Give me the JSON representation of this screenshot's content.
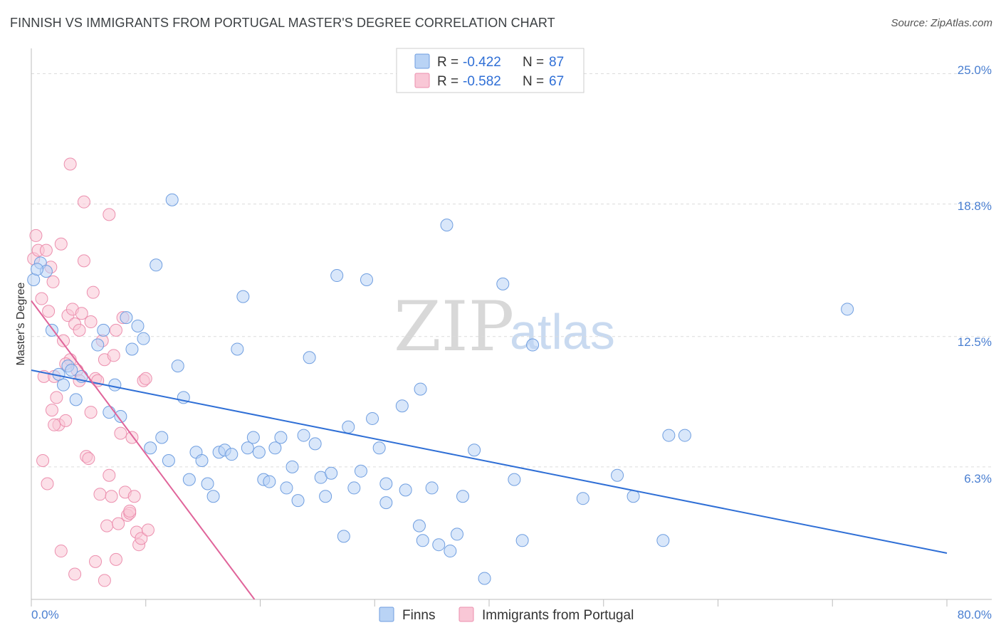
{
  "title": "FINNISH VS IMMIGRANTS FROM PORTUGAL MASTER'S DEGREE CORRELATION CHART",
  "source": "Source: ZipAtlas.com",
  "watermark": {
    "zip": "ZIP",
    "atlas": "atlas"
  },
  "legend": {
    "r_label": "R =",
    "n_label": "N =",
    "series": [
      {
        "name": "Finns",
        "r": "-0.422",
        "n": "87",
        "fill": "#b9d3f5",
        "stroke": "#6f9ee0"
      },
      {
        "name": "Immigrants from Portugal",
        "r": "-0.582",
        "n": "67",
        "fill": "#f9c7d6",
        "stroke": "#ec8fae"
      }
    ]
  },
  "colors": {
    "finns_line": "#2f6fd6",
    "portugal_line": "#e0649a",
    "grid": "#dcdcdc",
    "tick_text": "#4a7fd1"
  },
  "chart_data": {
    "type": "scatter",
    "title": "FINNISH VS IMMIGRANTS FROM PORTUGAL MASTER'S DEGREE CORRELATION CHART",
    "xlabel": "",
    "ylabel": "Master's Degree",
    "xlim": [
      0,
      80
    ],
    "ylim": [
      0,
      26.2
    ],
    "x_tick_labels": [
      "0.0%",
      "80.0%"
    ],
    "y_ticks": [
      6.3,
      12.5,
      18.8,
      25.0
    ],
    "y_tick_labels": [
      "6.3%",
      "12.5%",
      "18.8%",
      "25.0%"
    ],
    "series": [
      {
        "name": "Finns",
        "trend": {
          "x": [
            0,
            80
          ],
          "y": [
            10.9,
            2.2
          ]
        },
        "points": [
          [
            0.2,
            15.2
          ],
          [
            0.8,
            16.0
          ],
          [
            1.3,
            15.6
          ],
          [
            1.8,
            12.8
          ],
          [
            2.4,
            10.7
          ],
          [
            2.8,
            10.2
          ],
          [
            3.2,
            11.1
          ],
          [
            3.5,
            10.9
          ],
          [
            3.9,
            9.5
          ],
          [
            4.4,
            10.6
          ],
          [
            5.8,
            12.1
          ],
          [
            6.3,
            12.8
          ],
          [
            6.8,
            8.9
          ],
          [
            7.3,
            10.2
          ],
          [
            7.8,
            8.7
          ],
          [
            8.3,
            13.4
          ],
          [
            8.8,
            11.9
          ],
          [
            9.3,
            13.0
          ],
          [
            9.8,
            12.4
          ],
          [
            10.4,
            7.2
          ],
          [
            10.9,
            15.9
          ],
          [
            11.4,
            7.7
          ],
          [
            12.0,
            6.6
          ],
          [
            12.3,
            19.0
          ],
          [
            12.8,
            11.1
          ],
          [
            13.3,
            9.6
          ],
          [
            13.8,
            5.7
          ],
          [
            14.4,
            7.0
          ],
          [
            14.9,
            6.6
          ],
          [
            15.4,
            5.5
          ],
          [
            15.9,
            4.9
          ],
          [
            16.4,
            7.0
          ],
          [
            16.9,
            7.1
          ],
          [
            17.5,
            6.9
          ],
          [
            18.0,
            11.9
          ],
          [
            18.5,
            14.4
          ],
          [
            18.9,
            7.2
          ],
          [
            19.4,
            7.7
          ],
          [
            19.9,
            7.0
          ],
          [
            20.3,
            5.7
          ],
          [
            20.8,
            5.6
          ],
          [
            21.3,
            7.2
          ],
          [
            21.8,
            7.7
          ],
          [
            22.3,
            5.3
          ],
          [
            22.8,
            6.3
          ],
          [
            23.3,
            4.7
          ],
          [
            23.8,
            7.8
          ],
          [
            24.3,
            11.5
          ],
          [
            24.8,
            7.4
          ],
          [
            25.3,
            5.8
          ],
          [
            25.7,
            4.9
          ],
          [
            26.2,
            6.0
          ],
          [
            26.7,
            15.4
          ],
          [
            27.3,
            3.0
          ],
          [
            27.7,
            8.2
          ],
          [
            28.2,
            5.3
          ],
          [
            28.8,
            6.1
          ],
          [
            29.3,
            15.2
          ],
          [
            29.8,
            8.6
          ],
          [
            30.4,
            7.2
          ],
          [
            31.0,
            5.5
          ],
          [
            31.0,
            4.6
          ],
          [
            32.4,
            9.2
          ],
          [
            32.7,
            5.2
          ],
          [
            34.0,
            10.0
          ],
          [
            35.0,
            5.3
          ],
          [
            33.9,
            3.5
          ],
          [
            34.2,
            2.8
          ],
          [
            35.6,
            2.6
          ],
          [
            36.6,
            2.3
          ],
          [
            36.3,
            17.8
          ],
          [
            37.2,
            3.1
          ],
          [
            37.7,
            4.9
          ],
          [
            38.7,
            7.1
          ],
          [
            39.6,
            1.0
          ],
          [
            41.2,
            15.0
          ],
          [
            42.2,
            5.7
          ],
          [
            42.9,
            2.8
          ],
          [
            43.8,
            12.1
          ],
          [
            48.2,
            4.8
          ],
          [
            51.2,
            5.9
          ],
          [
            52.6,
            4.9
          ],
          [
            55.7,
            7.8
          ],
          [
            57.1,
            7.8
          ],
          [
            55.2,
            2.8
          ],
          [
            71.3,
            13.8
          ],
          [
            0.5,
            15.7
          ]
        ]
      },
      {
        "name": "Immigrants from Portugal",
        "trend": {
          "x": [
            0,
            19.5
          ],
          "y": [
            14.2,
            0
          ]
        },
        "points": [
          [
            0.2,
            16.2
          ],
          [
            0.4,
            17.3
          ],
          [
            0.6,
            16.6
          ],
          [
            0.9,
            14.3
          ],
          [
            1.1,
            10.6
          ],
          [
            1.3,
            16.6
          ],
          [
            1.5,
            13.7
          ],
          [
            1.7,
            15.8
          ],
          [
            1.9,
            15.1
          ],
          [
            2.0,
            10.6
          ],
          [
            2.2,
            9.6
          ],
          [
            2.4,
            8.3
          ],
          [
            2.6,
            16.9
          ],
          [
            2.8,
            12.3
          ],
          [
            3.0,
            8.5
          ],
          [
            3.2,
            13.5
          ],
          [
            3.4,
            11.4
          ],
          [
            3.6,
            13.8
          ],
          [
            3.8,
            13.1
          ],
          [
            4.0,
            10.9
          ],
          [
            4.2,
            12.8
          ],
          [
            4.4,
            13.6
          ],
          [
            4.6,
            16.1
          ],
          [
            4.8,
            6.8
          ],
          [
            5.0,
            6.7
          ],
          [
            5.2,
            8.9
          ],
          [
            5.4,
            14.6
          ],
          [
            5.6,
            10.5
          ],
          [
            5.8,
            10.4
          ],
          [
            6.0,
            5.0
          ],
          [
            6.2,
            12.3
          ],
          [
            6.4,
            11.4
          ],
          [
            6.6,
            3.5
          ],
          [
            6.8,
            5.9
          ],
          [
            7.0,
            4.9
          ],
          [
            7.2,
            11.6
          ],
          [
            7.4,
            12.8
          ],
          [
            7.6,
            3.6
          ],
          [
            7.8,
            7.9
          ],
          [
            8.0,
            13.4
          ],
          [
            8.2,
            5.1
          ],
          [
            8.4,
            4.0
          ],
          [
            8.6,
            4.1
          ],
          [
            8.8,
            7.7
          ],
          [
            9.0,
            4.9
          ],
          [
            9.2,
            3.2
          ],
          [
            9.4,
            2.6
          ],
          [
            9.6,
            2.9
          ],
          [
            9.8,
            10.4
          ],
          [
            10.0,
            10.5
          ],
          [
            10.2,
            3.3
          ],
          [
            3.4,
            20.7
          ],
          [
            4.6,
            18.9
          ],
          [
            6.8,
            18.3
          ],
          [
            1.0,
            6.6
          ],
          [
            1.4,
            5.5
          ],
          [
            1.8,
            9.0
          ],
          [
            2.6,
            2.3
          ],
          [
            3.8,
            1.2
          ],
          [
            5.6,
            1.8
          ],
          [
            7.4,
            1.9
          ],
          [
            6.4,
            0.9
          ],
          [
            2.0,
            8.3
          ],
          [
            3.0,
            11.2
          ],
          [
            4.2,
            10.4
          ],
          [
            5.2,
            13.2
          ],
          [
            8.6,
            4.2
          ]
        ]
      }
    ]
  }
}
